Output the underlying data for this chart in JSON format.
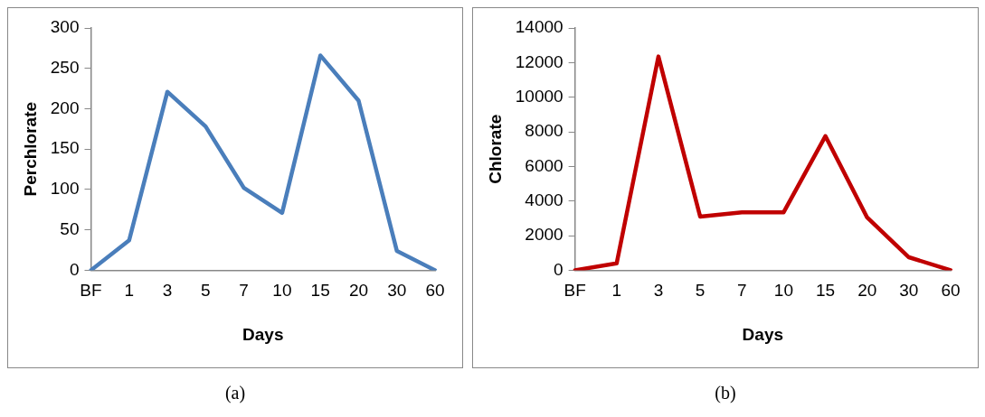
{
  "chart_data": [
    {
      "type": "line",
      "xlabel": "Days",
      "ylabel": "Perchlorate",
      "categories": [
        "BF",
        "1",
        "3",
        "5",
        "7",
        "10",
        "15",
        "20",
        "30",
        "60"
      ],
      "series": [
        {
          "color": "#4a7ebb",
          "values": [
            0,
            37,
            221,
            178,
            102,
            71,
            266,
            210,
            24,
            0
          ]
        }
      ],
      "ylim": [
        0,
        300
      ],
      "yticks": [
        0,
        50,
        100,
        150,
        200,
        250,
        300
      ],
      "grid": false,
      "legend": false,
      "marker": "none",
      "line_style": "solid",
      "annotations": [
        "(a)"
      ]
    },
    {
      "type": "line",
      "xlabel": "Days",
      "ylabel": "Chlorate",
      "categories": [
        "BF",
        "1",
        "3",
        "5",
        "7",
        "10",
        "15",
        "20",
        "30",
        "60"
      ],
      "series": [
        {
          "color": "#c00000",
          "values": [
            0,
            400,
            12350,
            3100,
            3350,
            3350,
            7750,
            3050,
            750,
            0
          ]
        }
      ],
      "ylim": [
        0,
        14000
      ],
      "yticks": [
        0,
        2000,
        4000,
        6000,
        8000,
        10000,
        12000,
        14000
      ],
      "grid": false,
      "legend": false,
      "marker": "none",
      "line_style": "solid",
      "annotations": [
        "(b)"
      ]
    }
  ]
}
